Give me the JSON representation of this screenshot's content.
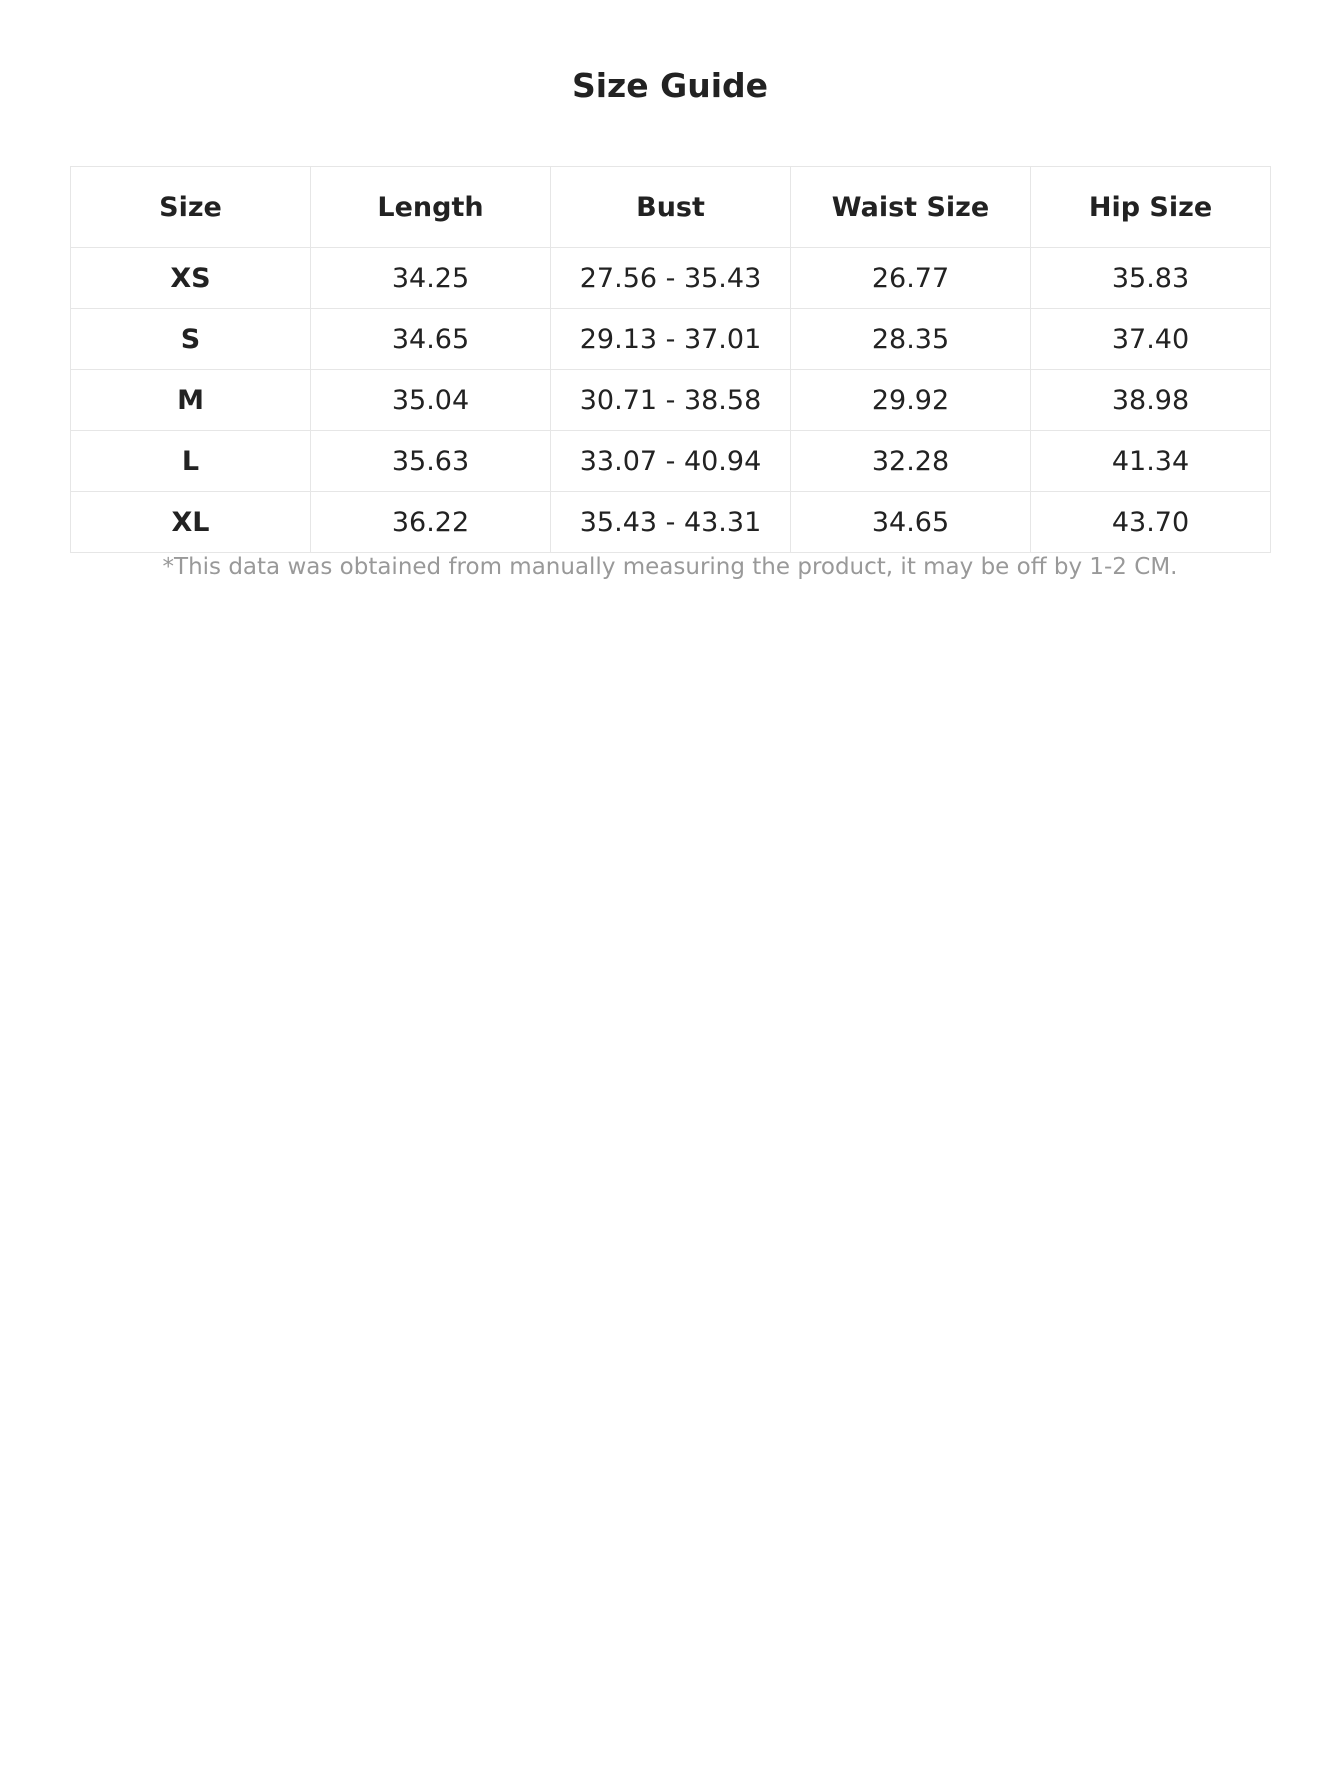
{
  "title": "Size Guide",
  "table": {
    "headers": [
      "Size",
      "Length",
      "Bust",
      "Waist Size",
      "Hip Size"
    ],
    "rows": [
      [
        "XS",
        "34.25",
        "27.56 - 35.43",
        "26.77",
        "35.83"
      ],
      [
        "S",
        "34.65",
        "29.13 - 37.01",
        "28.35",
        "37.40"
      ],
      [
        "M",
        "35.04",
        "30.71 - 38.58",
        "29.92",
        "38.98"
      ],
      [
        "L",
        "35.63",
        "33.07 - 40.94",
        "32.28",
        "41.34"
      ],
      [
        "XL",
        "36.22",
        "35.43 - 43.31",
        "34.65",
        "43.70"
      ]
    ]
  },
  "note": "*This data was obtained from manually measuring the product, it may be off by 1-2 CM."
}
